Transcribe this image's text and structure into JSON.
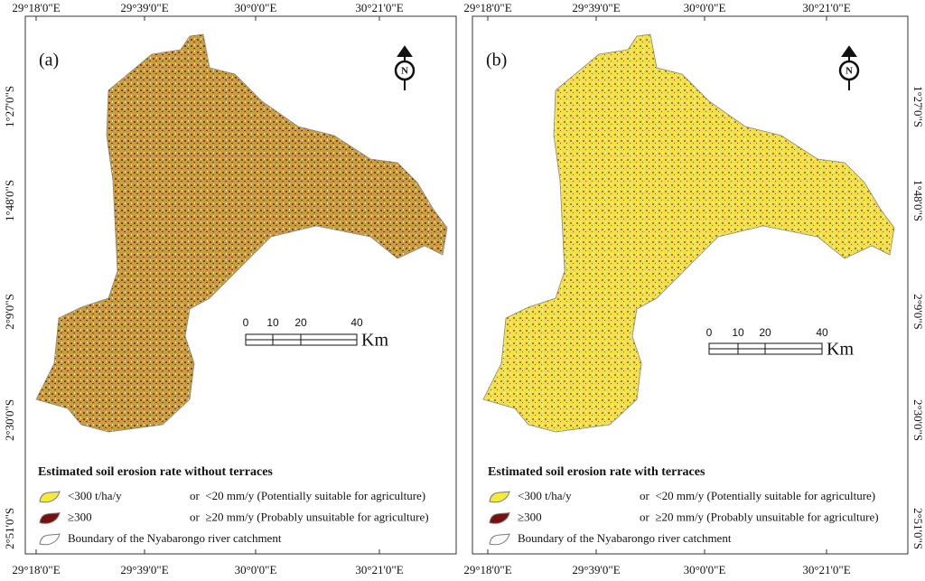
{
  "panels": [
    {
      "label": "(a)",
      "top_labels": [
        "29°18'0\"E",
        "29°39'0\"E",
        "30°0'0\"E",
        "30°21'0\"E"
      ],
      "bottom_labels": [
        "29°18'0\"E",
        "29°39'0\"E",
        "30°0'0\"E",
        "30°21'0\"E"
      ],
      "side_labels": [
        "1°27'0\"S",
        "1°48'0\"S",
        "2°9'0\"S",
        "2°30'0\"S",
        "2°51'0\"S"
      ],
      "north": "N",
      "scale_labels": [
        "0",
        "10",
        "20",
        "40"
      ],
      "scale_unit": "Km",
      "legend": {
        "title": "Estimated soil erosion rate without terraces",
        "items": [
          {
            "rate": "<300 t/ha/y",
            "alt": "or  <20 mm/y (Potentially suitable for agriculture)"
          },
          {
            "rate": "≥300",
            "alt": "or  ≥20 mm/y (Probably unsuitable for agriculture)"
          },
          {
            "rate": "Boundary of the Nyabarongo river catchment"
          }
        ]
      }
    },
    {
      "label": "(b)",
      "top_labels": [
        "29°18'0\"E",
        "29°39'0\"E",
        "30°0'0\"E",
        "30°21'0\"E"
      ],
      "bottom_labels": [
        "29°18'0\"E",
        "29°39'0\"E",
        "30°0'0\"E",
        "30°21'0\"E"
      ],
      "side_labels": [
        "1°27'0\"S",
        "1°48'0\"S",
        "2°9'0\"S",
        "2°30'0\"S",
        "2°51'0\"S"
      ],
      "north": "N",
      "scale_labels": [
        "0",
        "10",
        "20",
        "40"
      ],
      "scale_unit": "Km",
      "legend": {
        "title": "Estimated soil erosion rate with terraces",
        "items": [
          {
            "rate": "<300 t/ha/y",
            "alt": "or  <20 mm/y (Potentially suitable for agriculture)"
          },
          {
            "rate": "≥300",
            "alt": "or  ≥20 mm/y (Probably unsuitable for agriculture)"
          },
          {
            "rate": "Boundary of the Nyabarongo river catchment"
          }
        ]
      }
    }
  ]
}
